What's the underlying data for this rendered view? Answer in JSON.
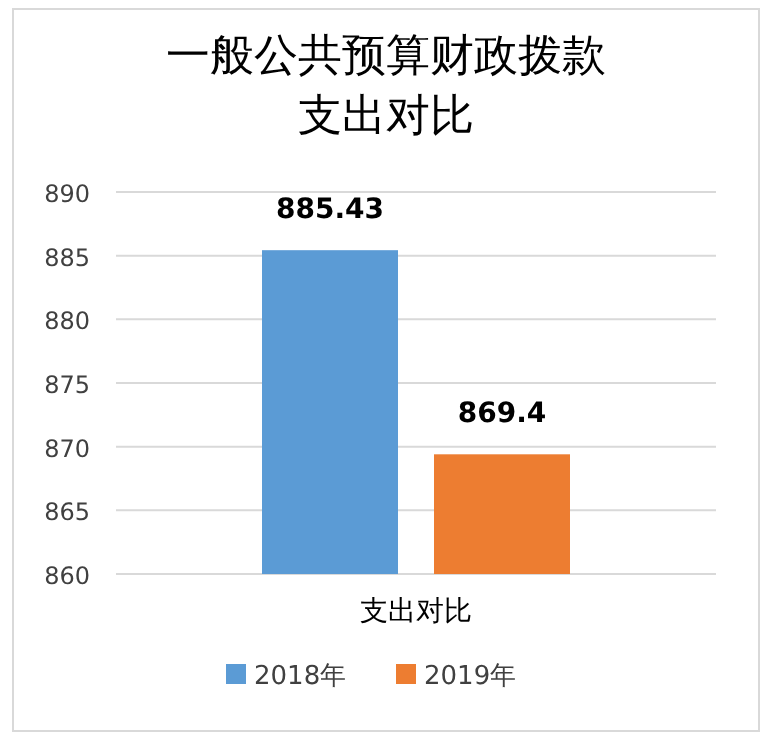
{
  "chart_data": {
    "type": "bar",
    "title": "一般公共预算财政拨款支出对比",
    "categories": [
      "支出对比"
    ],
    "series": [
      {
        "name": "2018年",
        "color": "#5b9bd5",
        "values": [
          885.43
        ]
      },
      {
        "name": "2019年",
        "color": "#ed7d31",
        "values": [
          869.4
        ]
      }
    ],
    "ylim": [
      860,
      890
    ],
    "yticks": [
      860,
      865,
      870,
      875,
      880,
      885,
      890
    ],
    "grid": "y",
    "legend": "bottom",
    "data_labels": true
  }
}
